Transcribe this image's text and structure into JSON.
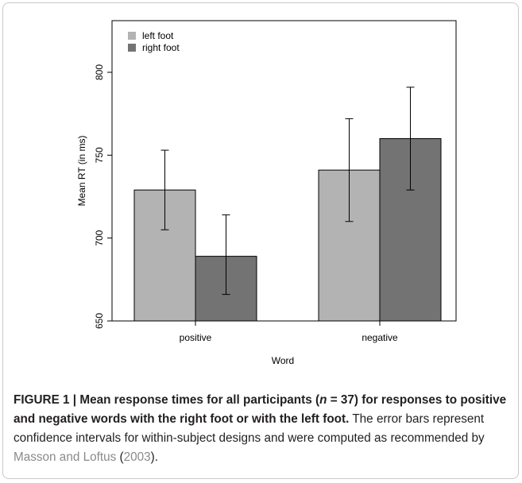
{
  "chart_data": {
    "type": "bar",
    "xlabel": "Word",
    "ylabel": "Mean RT (in ms)",
    "categories": [
      "positive",
      "negative"
    ],
    "series": [
      {
        "name": "left foot",
        "color": "#b3b3b3",
        "values": [
          729,
          741
        ],
        "ci_low": [
          705,
          710
        ],
        "ci_high": [
          753,
          772
        ]
      },
      {
        "name": "right foot",
        "color": "#737373",
        "values": [
          689,
          760
        ],
        "ci_low": [
          666,
          729
        ],
        "ci_high": [
          714,
          791
        ]
      }
    ],
    "ylim": [
      650,
      825
    ],
    "yticks": [
      650,
      700,
      750,
      800
    ],
    "legend_position": "top-left",
    "grid": false
  },
  "caption": {
    "label": "FIGURE 1 | ",
    "bold_prefix": "Mean response times for all participants (",
    "n_var": "n",
    "n_rest": " = 37) for responses to positive and negative words with the right foot or with the left foot.",
    "text": " The error bars represent confidence intervals for within-subject designs and were computed as recommended by ",
    "citation_authors": "Masson and Loftus",
    "citation_open": " (",
    "citation_year": "2003",
    "citation_close": ")."
  }
}
